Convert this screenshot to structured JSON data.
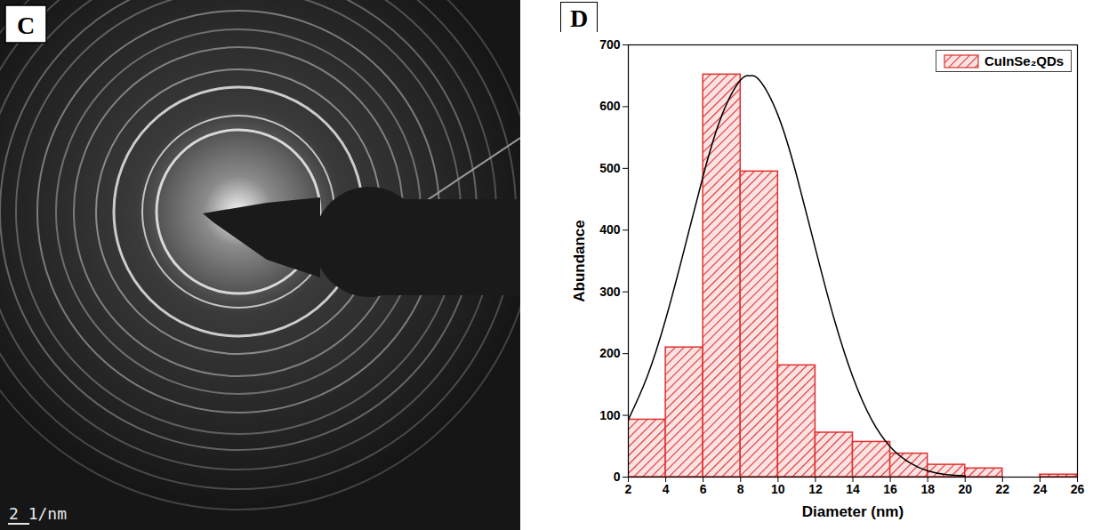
{
  "image": {
    "panel_label": "C",
    "scale_bar": "2 1/nm"
  },
  "chart_data": {
    "type": "histogram",
    "panel_label": "D",
    "x_label": "Diameter (nm)",
    "y_label": "Abundance",
    "bins": [
      2,
      4,
      6,
      8,
      10,
      12,
      14,
      16,
      18,
      20,
      22,
      24,
      26
    ],
    "series": [
      {
        "name": "CuInSe₂QDs",
        "type": "bar",
        "color": "#e0302f",
        "values": [
          93,
          210,
          652,
          495,
          181,
          72,
          57,
          38,
          20,
          14,
          0,
          4
        ]
      },
      {
        "type": "line",
        "color": "#000000",
        "x": [
          2,
          3,
          4,
          5,
          6,
          7,
          8,
          8.5,
          9,
          10,
          11,
          12,
          13,
          14,
          15,
          16,
          17,
          18,
          19,
          20
        ],
        "values": [
          93,
          162,
          256,
          370,
          488,
          586,
          643,
          650,
          643,
          586,
          488,
          370,
          256,
          162,
          93,
          49,
          24,
          10,
          4,
          2
        ]
      }
    ],
    "xlim": [
      2,
      26
    ],
    "xticks": [
      2,
      4,
      6,
      8,
      10,
      12,
      14,
      16,
      18,
      20,
      22,
      24,
      26
    ],
    "ylim": [
      0,
      700
    ],
    "yticks": [
      0,
      100,
      200,
      300,
      400,
      500,
      600,
      700
    ],
    "legend": "top-right"
  }
}
